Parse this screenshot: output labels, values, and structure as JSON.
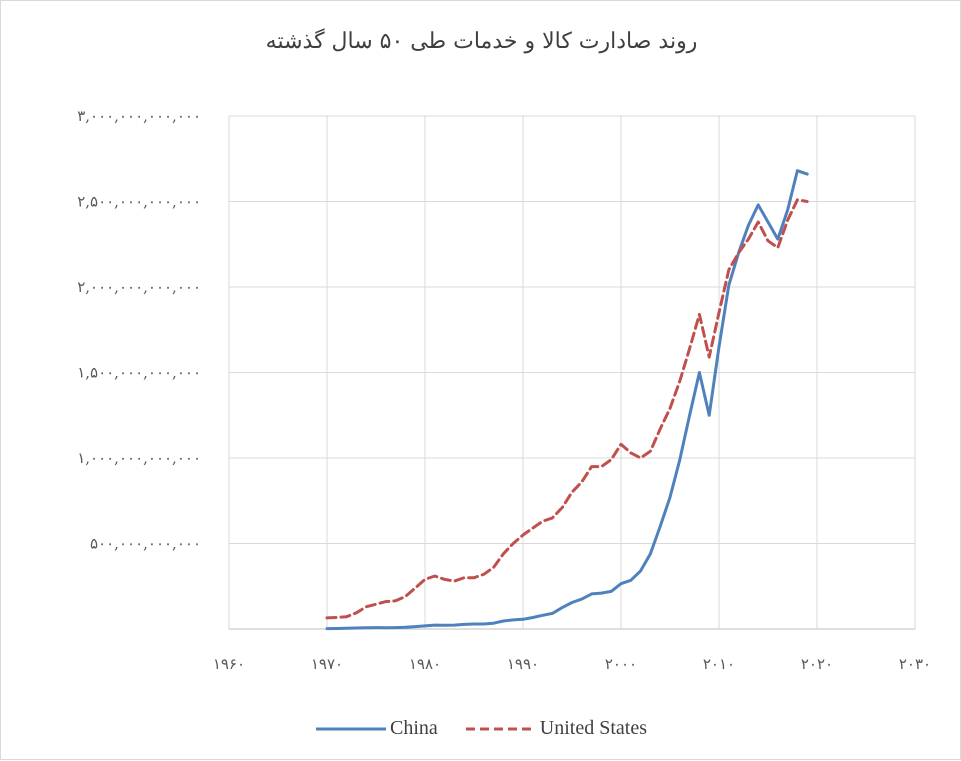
{
  "chart_data": {
    "type": "line",
    "title": "روند صادارت کالا و خدمات طی ۵۰ سال گذشته",
    "xlabel": "",
    "ylabel": "",
    "xlim": [
      1960,
      2030
    ],
    "ylim": [
      0,
      3000000000000
    ],
    "x_ticks": [
      1960,
      1970,
      1980,
      1990,
      2000,
      2010,
      2020,
      2030
    ],
    "x_tick_labels": [
      "۱۹۶۰",
      "۱۹۷۰",
      "۱۹۸۰",
      "۱۹۹۰",
      "۲۰۰۰",
      "۲۰۱۰",
      "۲۰۲۰",
      "۲۰۳۰"
    ],
    "y_ticks": [
      0,
      500000000000,
      1000000000000,
      1500000000000,
      2000000000000,
      2500000000000,
      3000000000000
    ],
    "y_tick_labels": [
      "",
      "۵۰۰,۰۰۰,۰۰۰,۰۰۰",
      "۱,۰۰۰,۰۰۰,۰۰۰,۰۰۰",
      "۱,۵۰۰,۰۰۰,۰۰۰,۰۰۰",
      "۲,۰۰۰,۰۰۰,۰۰۰,۰۰۰",
      "۲,۵۰۰,۰۰۰,۰۰۰,۰۰۰",
      "۳,۰۰۰,۰۰۰,۰۰۰,۰۰۰"
    ],
    "grid": true,
    "legend_position": "bottom",
    "x": [
      1970,
      1971,
      1972,
      1973,
      1974,
      1975,
      1976,
      1977,
      1978,
      1979,
      1980,
      1981,
      1982,
      1983,
      1984,
      1985,
      1986,
      1987,
      1988,
      1989,
      1990,
      1991,
      1992,
      1993,
      1994,
      1995,
      1996,
      1997,
      1998,
      1999,
      2000,
      2001,
      2002,
      2003,
      2004,
      2005,
      2006,
      2007,
      2008,
      2009,
      2010,
      2011,
      2012,
      2013,
      2014,
      2015,
      2016,
      2017,
      2018,
      2019
    ],
    "series": [
      {
        "name": "China",
        "color": "#4f81bd",
        "dash": "solid",
        "values": [
          2500000000,
          3000000000,
          4000000000,
          6000000000,
          7500000000,
          8000000000,
          7500000000,
          8000000000,
          10000000000,
          14000000000,
          18000000000,
          23000000000,
          22000000000,
          23000000000,
          27000000000,
          29000000000,
          29000000000,
          34000000000,
          47000000000,
          53000000000,
          57000000000,
          67000000000,
          80000000000,
          91000000000,
          125000000000,
          155000000000,
          175000000000,
          205000000000,
          210000000000,
          220000000000,
          265000000000,
          285000000000,
          340000000000,
          440000000000,
          600000000000,
          770000000000,
          990000000000,
          1250000000000,
          1500000000000,
          1250000000000,
          1650000000000,
          2010000000000,
          2200000000000,
          2360000000000,
          2480000000000,
          2380000000000,
          2280000000000,
          2450000000000,
          2680000000000,
          2660000000000
        ]
      },
      {
        "name": "United States",
        "color": "#c0504d",
        "dash": "dashed",
        "values": [
          65000000000,
          68000000000,
          72000000000,
          95000000000,
          130000000000,
          145000000000,
          160000000000,
          165000000000,
          190000000000,
          240000000000,
          290000000000,
          310000000000,
          290000000000,
          280000000000,
          300000000000,
          300000000000,
          320000000000,
          360000000000,
          440000000000,
          500000000000,
          550000000000,
          590000000000,
          630000000000,
          650000000000,
          710000000000,
          800000000000,
          860000000000,
          950000000000,
          950000000000,
          990000000000,
          1080000000000,
          1030000000000,
          1000000000000,
          1040000000000,
          1170000000000,
          1290000000000,
          1450000000000,
          1640000000000,
          1840000000000,
          1590000000000,
          1850000000000,
          2100000000000,
          2200000000000,
          2280000000000,
          2380000000000,
          2270000000000,
          2230000000000,
          2390000000000,
          2510000000000,
          2500000000000
        ]
      }
    ]
  }
}
